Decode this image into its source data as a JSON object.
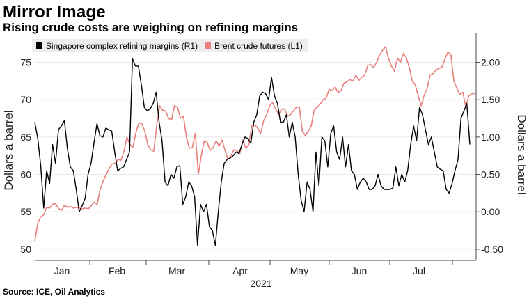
{
  "header": {
    "title": "Mirror Image",
    "subtitle": "Rising crude costs are weighing on refining margins"
  },
  "footer": {
    "source": "Source: ICE, Oil Analytics"
  },
  "colors": {
    "margins": "#000000",
    "brent": "#e8807c",
    "axis": "#333333"
  },
  "chart_data": {
    "type": "line",
    "x_unit": "trading day index, Jan 1 2021 to early Aug 2021",
    "months": [
      "Jan",
      "Feb",
      "Mar",
      "Apr",
      "May",
      "Jun",
      "Jul"
    ],
    "year_label": "2021",
    "y_left": {
      "label": "Dollars a barrel",
      "range": [
        48.5,
        78.5
      ],
      "ticks": [
        "50",
        "55",
        "60",
        "65",
        "70",
        "75"
      ]
    },
    "y_right": {
      "label": "Dollars a barrel",
      "range": [
        -0.65,
        2.35
      ],
      "ticks": [
        "-0.50",
        "0.00",
        "0.50",
        "1.00",
        "1.50",
        "2.00"
      ]
    },
    "series": [
      {
        "name": "Singapore complex refining margins (R1)",
        "axis": "right",
        "values": [
          1.2,
          0.98,
          0.62,
          0.05,
          0.55,
          0.38,
          0.9,
          0.65,
          1.1,
          1.15,
          1.22,
          0.85,
          0.6,
          0.55,
          0.3,
          0.0,
          0.08,
          0.18,
          0.5,
          0.65,
          0.92,
          1.18,
          1.02,
          1.0,
          1.12,
          1.1,
          1.08,
          0.8,
          0.55,
          0.58,
          0.6,
          0.7,
          0.8,
          2.05,
          1.95,
          1.95,
          1.7,
          1.4,
          1.35,
          1.38,
          1.45,
          1.6,
          1.2,
          0.95,
          0.4,
          0.35,
          0.5,
          0.45,
          0.6,
          0.62,
          0.1,
          0.2,
          0.4,
          0.35,
          0.2,
          -0.45,
          0.1,
          0.0,
          0.1,
          -0.2,
          -0.25,
          -0.45,
          0.0,
          0.4,
          0.65,
          0.7,
          0.72,
          0.75,
          0.8,
          0.78,
          0.9,
          1.0,
          0.98,
          0.92,
          1.2,
          1.3,
          1.55,
          1.6,
          1.58,
          1.5,
          1.8,
          1.55,
          1.45,
          1.2,
          1.2,
          1.3,
          1.0,
          1.2,
          1.0,
          0.5,
          0.15,
          0.0,
          0.4,
          0.3,
          0.0,
          0.8,
          0.35,
          1.0,
          0.95,
          0.6,
          1.05,
          1.15,
          0.8,
          0.7,
          1.0,
          0.6,
          0.9,
          0.55,
          0.5,
          0.3,
          0.4,
          0.45,
          0.4,
          0.3,
          0.3,
          0.35,
          0.5,
          0.35,
          0.3,
          0.3,
          0.3,
          0.32,
          0.6,
          0.35,
          0.5,
          0.4,
          0.55,
          0.9,
          1.15,
          0.95,
          1.4,
          1.3,
          1.1,
          0.9,
          1.0,
          0.8,
          0.6,
          0.57,
          0.55,
          0.3,
          0.25,
          0.38,
          0.55,
          0.7,
          1.25,
          1.35,
          1.45,
          0.9
        ]
      },
      {
        "name": "Brent crude futures (L1)",
        "axis": "left",
        "values": [
          51.1,
          53.5,
          54.3,
          54.6,
          55.6,
          55.5,
          56.0,
          56.1,
          55.4,
          55.2,
          55.9,
          55.6,
          55.7,
          55.5,
          55.6,
          55.5,
          55.4,
          55.5,
          55.4,
          55.8,
          56.3,
          56.0,
          58.0,
          59.1,
          60.0,
          60.8,
          61.4,
          61.5,
          62.0,
          61.9,
          63.1,
          65.0,
          64.0,
          63.6,
          65.6,
          66.9,
          66.8,
          65.8,
          64.0,
          63.3,
          63.1,
          66.5,
          69.2,
          68.6,
          68.5,
          67.5,
          67.3,
          69.2,
          69.0,
          67.5,
          67.8,
          65.0,
          63.5,
          63.6,
          65.5,
          60.0,
          62.5,
          64.5,
          64.3,
          63.2,
          63.6,
          64.5,
          63.8,
          64.6,
          63.2,
          62.0,
          62.5,
          63.3,
          63.2,
          62.8,
          64.6,
          63.5,
          64.0,
          66.5,
          66.6,
          66.2,
          65.5,
          67.2,
          68.0,
          69.2,
          69.6,
          68.8,
          68.0,
          68.7,
          68.8,
          67.8,
          68.0,
          68.5,
          69.0,
          69.0,
          65.8,
          65.2,
          65.8,
          66.5,
          68.6,
          69.0,
          69.4,
          70.0,
          70.2,
          71.4,
          71.2,
          71.7,
          71.0,
          71.2,
          72.2,
          72.4,
          72.7,
          72.5,
          73.3,
          72.6,
          73.0,
          73.3,
          74.6,
          74.7,
          74.3,
          75.0,
          76.0,
          76.6,
          77.1,
          75.5,
          74.5,
          73.8,
          75.6,
          75.0,
          76.2,
          75.6,
          74.3,
          72.5,
          72.0,
          70.5,
          69.2,
          70.6,
          71.5,
          73.3,
          73.5,
          74.0,
          74.2,
          74.4,
          75.5,
          76.4,
          76.0,
          72.5,
          71.5,
          70.7,
          71.0,
          69.0,
          70.5,
          70.8,
          70.8
        ]
      }
    ]
  }
}
